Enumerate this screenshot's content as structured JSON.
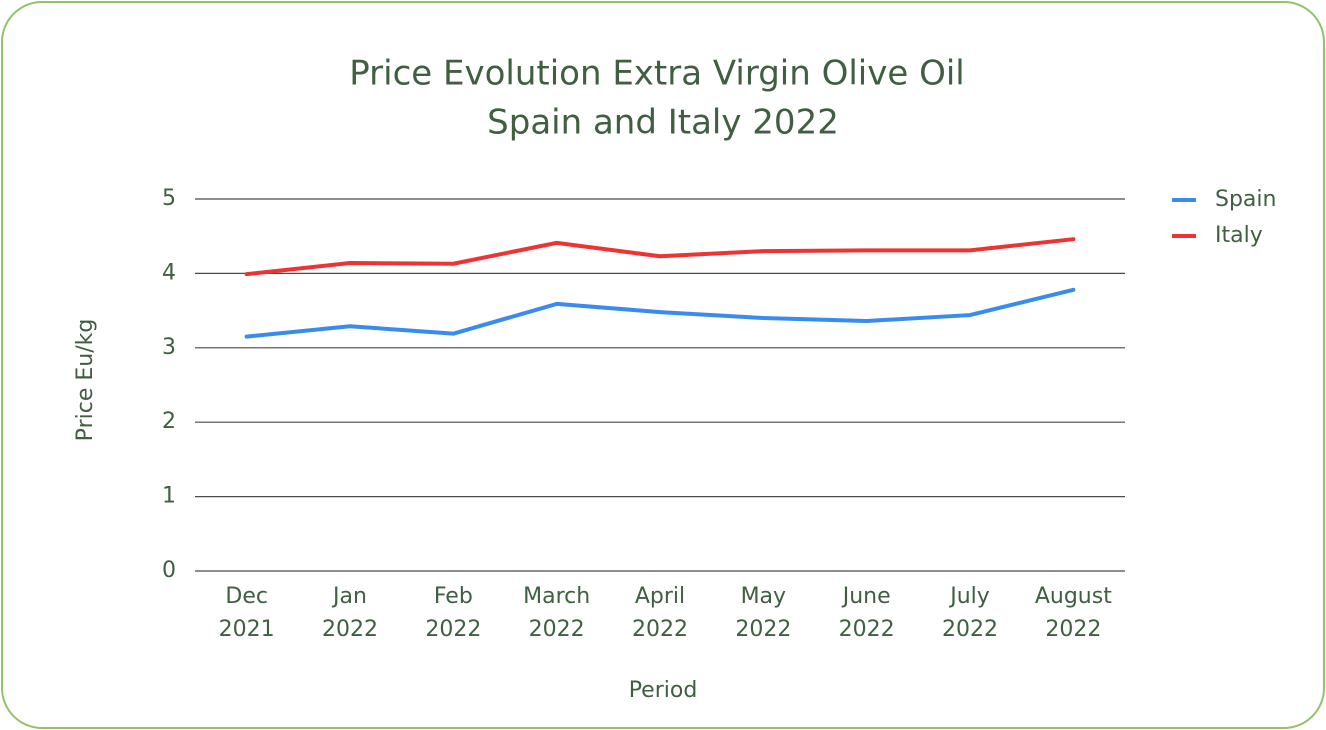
{
  "chart_data": {
    "type": "line",
    "title": [
      "Price Evolution Extra Virgin Olive Oil",
      "Spain and Italy 2022"
    ],
    "x_label": "Period",
    "y_label": "Price Eu/kg",
    "categories": [
      [
        "Dec",
        "2021"
      ],
      [
        "Jan",
        "2022"
      ],
      [
        "Feb",
        "2022"
      ],
      [
        "March",
        "2022"
      ],
      [
        "April",
        "2022"
      ],
      [
        "May",
        "2022"
      ],
      [
        "June",
        "2022"
      ],
      [
        "July",
        "2022"
      ],
      [
        "August",
        "2022"
      ]
    ],
    "series": [
      {
        "name": "Spain",
        "color": "#3a8bf0",
        "values": [
          3.15,
          3.29,
          3.19,
          3.59,
          3.48,
          3.4,
          3.36,
          3.44,
          3.78
        ]
      },
      {
        "name": "Italy",
        "color": "#ee3333",
        "values": [
          3.99,
          4.14,
          4.13,
          4.41,
          4.23,
          4.3,
          4.31,
          4.31,
          4.46
        ]
      }
    ],
    "ylim": [
      0,
      5
    ],
    "yticks": [
      0,
      1,
      2,
      3,
      4,
      5
    ],
    "grid": true,
    "legend": "right"
  }
}
